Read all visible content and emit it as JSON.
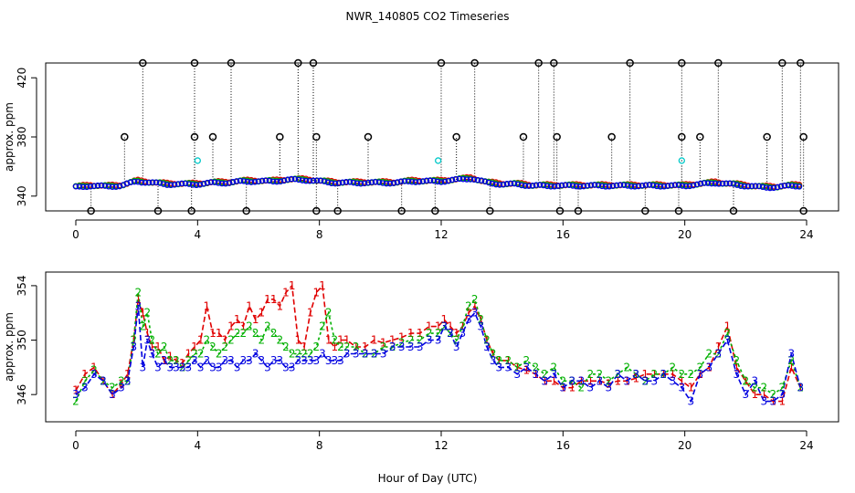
{
  "figure": {
    "title": "NWR_140805  CO2 Timeseries",
    "xlabel": "Hour of Day (UTC)"
  },
  "colors": {
    "series1": "#e00000",
    "series2": "#00b000",
    "series3": "#0000e0",
    "outlier": "#000000",
    "flag": "#00c8c8",
    "axis": "#000000"
  },
  "chart_data": [
    {
      "type": "scatter",
      "panel": "top",
      "ylabel": "approx. ppm",
      "xlim": [
        0,
        24
      ],
      "ylim": [
        330,
        430
      ],
      "xticks": [
        0,
        4,
        8,
        12,
        16,
        20,
        24
      ],
      "yticks": [
        340,
        380,
        420
      ],
      "series": [
        {
          "role": "baseline",
          "x": [
            0,
            0.5,
            1,
            1.5,
            2,
            2.5,
            3,
            3.5,
            4,
            4.5,
            5,
            5.5,
            6,
            6.5,
            7,
            7.5,
            8,
            8.5,
            9,
            9.5,
            10,
            10.5,
            11,
            11.5,
            12,
            12.5,
            13,
            13.5,
            14,
            14.5,
            15,
            15.5,
            16,
            16.5,
            17,
            17.5,
            18,
            18.5,
            19,
            19.5,
            20,
            20.5,
            21,
            21.5,
            22,
            22.5,
            23,
            23.5
          ],
          "values": [
            346,
            347,
            346.5,
            347,
            350,
            349,
            348,
            348,
            348,
            349,
            349,
            350,
            350,
            350,
            351,
            351,
            350,
            349,
            349,
            349,
            349,
            349,
            350,
            350,
            350,
            351,
            352,
            349,
            348,
            348,
            347,
            347,
            347,
            347,
            347,
            347,
            347,
            347,
            347,
            347,
            347,
            348,
            349,
            348,
            347,
            346,
            346,
            347
          ]
        },
        {
          "role": "high-outliers",
          "x": [
            2.2,
            3.9,
            5.1,
            7.3,
            7.8,
            12.0,
            13.1,
            15.2,
            15.7,
            18.2,
            19.9,
            21.1,
            23.2,
            23.8
          ],
          "values": [
            430,
            430,
            430,
            430,
            430,
            430,
            430,
            430,
            430,
            430,
            430,
            430,
            430,
            430
          ]
        },
        {
          "role": "mid-outliers",
          "x": [
            1.6,
            3.9,
            4.5,
            6.7,
            7.9,
            9.6,
            12.5,
            14.7,
            15.8,
            17.6,
            19.9,
            20.5,
            22.7,
            23.9
          ],
          "values": [
            380,
            380,
            380,
            380,
            380,
            380,
            380,
            380,
            380,
            380,
            380,
            380,
            380,
            380
          ]
        },
        {
          "role": "low-outliers",
          "x": [
            0.5,
            2.7,
            3.8,
            5.6,
            7.9,
            8.6,
            10.7,
            11.8,
            13.6,
            15.9,
            16.5,
            18.7,
            19.8,
            21.6,
            23.9
          ],
          "values": [
            330,
            330,
            330,
            330,
            330,
            330,
            330,
            330,
            330,
            330,
            330,
            330,
            330,
            330,
            330
          ]
        },
        {
          "role": "flagged",
          "x": [
            4.0,
            11.9,
            19.9
          ],
          "values": [
            364,
            364,
            364
          ]
        }
      ]
    },
    {
      "type": "line",
      "panel": "bottom",
      "ylabel": "approx. ppm",
      "xlim": [
        0,
        24
      ],
      "ylim": [
        344,
        355
      ],
      "xticks": [
        0,
        4,
        8,
        12,
        16,
        20,
        24
      ],
      "yticks": [
        346,
        350,
        354
      ],
      "series": [
        {
          "label": "1",
          "x": [
            0.0,
            0.3,
            0.6,
            0.9,
            1.2,
            1.5,
            1.7,
            1.9,
            2.05,
            2.2,
            2.35,
            2.5,
            2.7,
            2.9,
            3.1,
            3.3,
            3.5,
            3.7,
            3.9,
            4.1,
            4.3,
            4.5,
            4.7,
            4.9,
            5.1,
            5.3,
            5.5,
            5.7,
            5.9,
            6.1,
            6.3,
            6.5,
            6.7,
            6.9,
            7.1,
            7.3,
            7.5,
            7.7,
            7.9,
            8.1,
            8.3,
            8.5,
            8.7,
            8.9,
            9.2,
            9.5,
            9.8,
            10.1,
            10.4,
            10.7,
            11.0,
            11.3,
            11.6,
            11.9,
            12.1,
            12.3,
            12.5,
            12.7,
            12.9,
            13.1,
            13.3,
            13.5,
            13.7,
            13.9,
            14.2,
            14.5,
            14.8,
            15.1,
            15.4,
            15.7,
            16.0,
            16.3,
            16.6,
            16.9,
            17.2,
            17.5,
            17.8,
            18.1,
            18.4,
            18.7,
            19.0,
            19.3,
            19.6,
            19.9,
            20.2,
            20.5,
            20.8,
            21.1,
            21.4,
            21.7,
            22.0,
            22.3,
            22.6,
            22.9,
            23.2,
            23.5,
            23.8
          ],
          "values": [
            346.3,
            347.5,
            348.0,
            347.0,
            346.0,
            346.8,
            347.5,
            350.0,
            353.0,
            352.0,
            350.5,
            349.5,
            349.5,
            348.5,
            348.8,
            348.5,
            348.3,
            349.0,
            349.5,
            350.0,
            352.5,
            350.5,
            350.5,
            350.0,
            351.0,
            351.5,
            351.0,
            352.5,
            351.5,
            352.0,
            353.0,
            353.0,
            352.5,
            353.5,
            354.0,
            350.0,
            349.5,
            352.0,
            353.5,
            354.0,
            350.0,
            349.5,
            350.0,
            350.0,
            349.5,
            349.5,
            350.0,
            349.8,
            350.0,
            350.2,
            350.5,
            350.5,
            351.0,
            351.0,
            351.5,
            351.0,
            350.5,
            351.0,
            352.0,
            352.5,
            351.5,
            350.0,
            349.0,
            348.5,
            348.5,
            348.0,
            347.8,
            347.5,
            347.0,
            347.0,
            346.5,
            346.5,
            347.0,
            347.0,
            347.0,
            346.8,
            347.0,
            347.0,
            347.2,
            347.5,
            347.5,
            347.5,
            347.5,
            347.0,
            346.5,
            347.5,
            348.0,
            349.5,
            351.0,
            348.0,
            347.0,
            346.0,
            346.0,
            345.5,
            345.5,
            348.0,
            346.5
          ]
        },
        {
          "label": "2",
          "x": [
            0.0,
            0.3,
            0.6,
            0.9,
            1.2,
            1.5,
            1.7,
            1.9,
            2.05,
            2.2,
            2.35,
            2.5,
            2.7,
            2.9,
            3.1,
            3.3,
            3.5,
            3.7,
            3.9,
            4.1,
            4.3,
            4.5,
            4.7,
            4.9,
            5.1,
            5.3,
            5.5,
            5.7,
            5.9,
            6.1,
            6.3,
            6.5,
            6.7,
            6.9,
            7.1,
            7.3,
            7.5,
            7.7,
            7.9,
            8.1,
            8.3,
            8.5,
            8.7,
            8.9,
            9.2,
            9.5,
            9.8,
            10.1,
            10.4,
            10.7,
            11.0,
            11.3,
            11.6,
            11.9,
            12.1,
            12.3,
            12.5,
            12.7,
            12.9,
            13.1,
            13.3,
            13.5,
            13.7,
            13.9,
            14.2,
            14.5,
            14.8,
            15.1,
            15.4,
            15.7,
            16.0,
            16.3,
            16.6,
            16.9,
            17.2,
            17.5,
            17.8,
            18.1,
            18.4,
            18.7,
            19.0,
            19.3,
            19.6,
            19.9,
            20.2,
            20.5,
            20.8,
            21.1,
            21.4,
            21.7,
            22.0,
            22.3,
            22.6,
            22.9,
            23.2,
            23.5,
            23.8
          ],
          "values": [
            345.5,
            347.0,
            347.8,
            347.0,
            346.5,
            347.0,
            347.0,
            350.0,
            353.5,
            351.0,
            352.0,
            350.0,
            349.0,
            349.5,
            348.5,
            348.5,
            348.0,
            348.5,
            349.0,
            349.0,
            350.0,
            349.5,
            349.0,
            349.5,
            350.0,
            350.5,
            350.5,
            351.0,
            350.5,
            350.0,
            351.0,
            350.5,
            350.0,
            349.5,
            349.0,
            349.0,
            349.0,
            349.0,
            349.5,
            351.0,
            352.0,
            350.0,
            349.5,
            349.5,
            349.5,
            349.0,
            349.0,
            349.5,
            349.5,
            349.8,
            350.0,
            350.0,
            350.5,
            350.5,
            351.0,
            350.5,
            350.0,
            351.0,
            352.5,
            353.0,
            351.5,
            350.0,
            349.0,
            348.5,
            348.5,
            348.0,
            348.5,
            348.0,
            347.5,
            348.0,
            347.0,
            347.0,
            346.5,
            347.5,
            347.5,
            347.0,
            347.5,
            348.0,
            347.5,
            347.0,
            347.5,
            347.5,
            348.0,
            347.5,
            347.5,
            348.0,
            349.0,
            349.0,
            350.5,
            348.5,
            347.0,
            346.5,
            346.5,
            346.0,
            346.5,
            348.5,
            346.5
          ]
        },
        {
          "label": "3",
          "x": [
            0.0,
            0.3,
            0.6,
            0.9,
            1.2,
            1.5,
            1.7,
            1.9,
            2.05,
            2.2,
            2.35,
            2.5,
            2.7,
            2.9,
            3.1,
            3.3,
            3.5,
            3.7,
            3.9,
            4.1,
            4.3,
            4.5,
            4.7,
            4.9,
            5.1,
            5.3,
            5.5,
            5.7,
            5.9,
            6.1,
            6.3,
            6.5,
            6.7,
            6.9,
            7.1,
            7.3,
            7.5,
            7.7,
            7.9,
            8.1,
            8.3,
            8.5,
            8.7,
            8.9,
            9.2,
            9.5,
            9.8,
            10.1,
            10.4,
            10.7,
            11.0,
            11.3,
            11.6,
            11.9,
            12.1,
            12.3,
            12.5,
            12.7,
            12.9,
            13.1,
            13.3,
            13.5,
            13.7,
            13.9,
            14.2,
            14.5,
            14.8,
            15.1,
            15.4,
            15.7,
            16.0,
            16.3,
            16.6,
            16.9,
            17.2,
            17.5,
            17.8,
            18.1,
            18.4,
            18.7,
            19.0,
            19.3,
            19.6,
            19.9,
            20.2,
            20.5,
            20.8,
            21.1,
            21.4,
            21.7,
            22.0,
            22.3,
            22.6,
            22.9,
            23.2,
            23.5,
            23.8
          ],
          "values": [
            346.0,
            346.5,
            347.5,
            347.0,
            346.0,
            346.5,
            347.0,
            349.5,
            352.5,
            348.0,
            350.0,
            349.0,
            348.0,
            348.5,
            348.0,
            348.0,
            348.0,
            348.0,
            348.5,
            348.0,
            348.5,
            348.0,
            348.0,
            348.5,
            348.5,
            348.0,
            348.5,
            348.5,
            349.0,
            348.5,
            348.0,
            348.5,
            348.5,
            348.0,
            348.0,
            348.5,
            348.5,
            348.5,
            348.5,
            349.0,
            348.5,
            348.5,
            348.5,
            349.0,
            349.0,
            349.0,
            349.0,
            349.0,
            349.5,
            349.5,
            349.5,
            349.5,
            350.0,
            350.0,
            351.0,
            350.5,
            349.5,
            350.5,
            351.5,
            352.0,
            351.0,
            349.5,
            348.5,
            348.0,
            348.0,
            347.5,
            348.0,
            347.5,
            347.0,
            347.5,
            346.5,
            347.0,
            347.0,
            346.5,
            347.0,
            346.5,
            347.5,
            347.0,
            347.5,
            347.0,
            347.0,
            347.5,
            347.0,
            346.5,
            345.5,
            347.5,
            348.0,
            349.0,
            350.0,
            347.5,
            346.0,
            347.0,
            345.5,
            345.5,
            346.0,
            349.0,
            346.5
          ]
        }
      ]
    }
  ]
}
